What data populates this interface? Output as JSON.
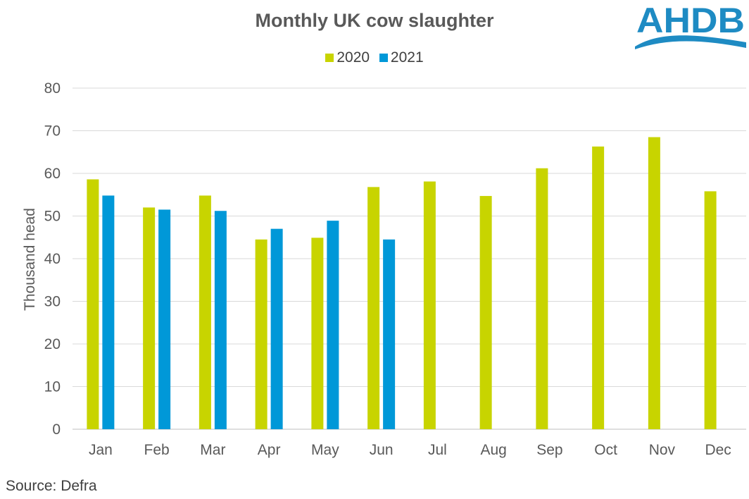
{
  "brand": {
    "logo_text": "AHDB",
    "logo_color": "#1e8bc3"
  },
  "source": "Source: Defra",
  "chart_data": {
    "type": "bar",
    "title": "Monthly UK cow slaughter",
    "xlabel": "",
    "ylabel": "Thousand head",
    "ylim": [
      0,
      80
    ],
    "yticks": [
      0,
      10,
      20,
      30,
      40,
      50,
      60,
      70,
      80
    ],
    "grid": true,
    "legend_position": "top-center",
    "categories": [
      "Jan",
      "Feb",
      "Mar",
      "Apr",
      "May",
      "Jun",
      "Jul",
      "Aug",
      "Sep",
      "Oct",
      "Nov",
      "Dec"
    ],
    "series": [
      {
        "name": "2020",
        "color": "#c8d400",
        "values": [
          58.6,
          52.0,
          54.8,
          44.5,
          44.9,
          56.8,
          58.1,
          54.7,
          61.2,
          66.3,
          68.5,
          55.8
        ]
      },
      {
        "name": "2021",
        "color": "#0098d8",
        "values": [
          54.8,
          51.5,
          51.2,
          47.0,
          48.9,
          44.5,
          null,
          null,
          null,
          null,
          null,
          null
        ]
      }
    ]
  }
}
